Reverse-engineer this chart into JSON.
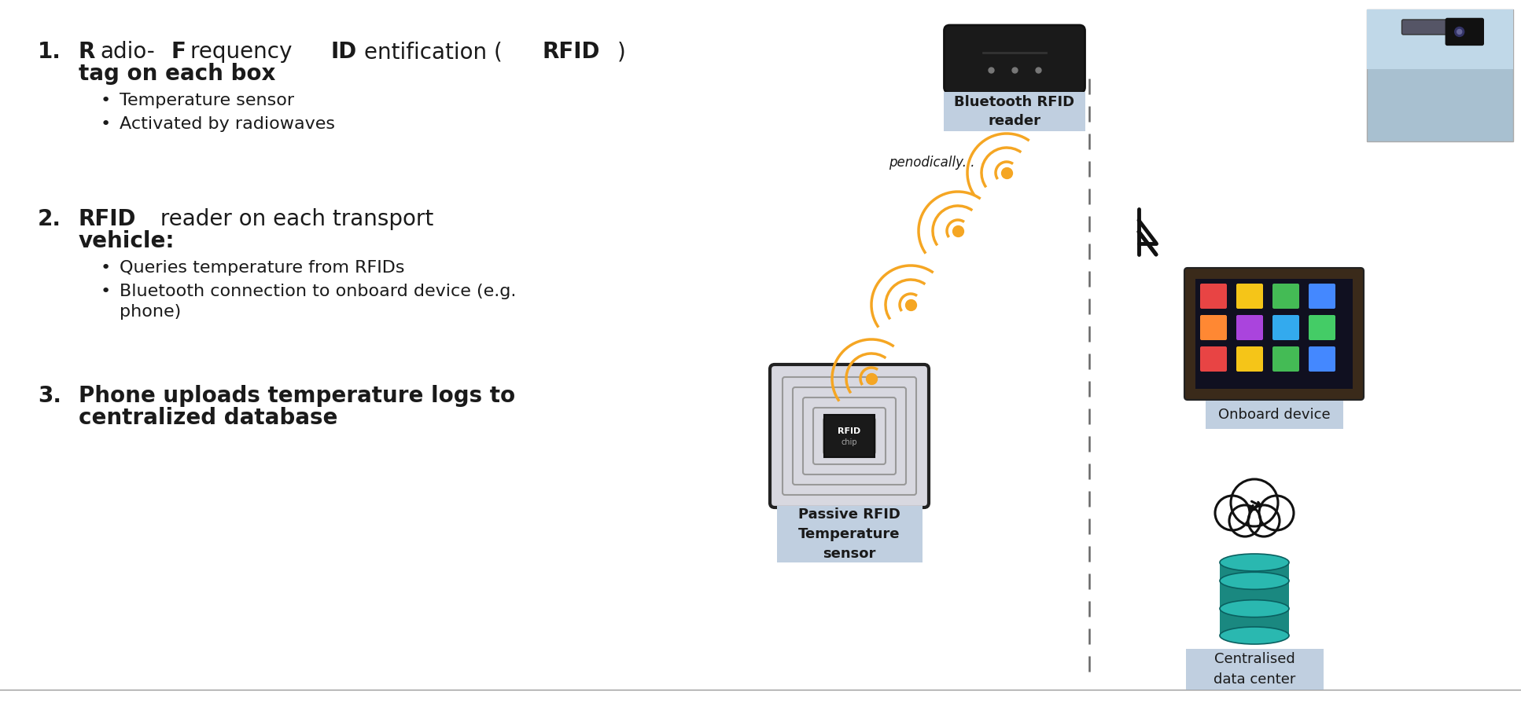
{
  "bg_color": "#ffffff",
  "text_color": "#1a1a1a",
  "box_label_bg": "#c0cfe0",
  "signal_color": "#f5a623",
  "dashed_line_color": "#666666",
  "item1_num": "1.",
  "item1_line1_plain": "adio-Frequency ",
  "item1_line1_bold1": "R",
  "item1_line1_bold2": "ID",
  "item1_line1_mid": "entification (",
  "item1_line1_bold3": "RFID",
  "item1_line1_end": ")",
  "item1_line2": "tag on each box",
  "item1_bullet1": "Temperature sensor",
  "item1_bullet2": "Activated by radiowaves",
  "item2_num": "2.",
  "item2_line1": "RFID reader on each transport",
  "item2_line2": "vehicle:",
  "item2_bullet1": "Queries temperature from RFIDs",
  "item2_bullet2a": "Bluetooth connection to onboard device (e.g.",
  "item2_bullet2b": "phone)",
  "item3_num": "3.",
  "item3_line1": "Phone uploads temperature logs to",
  "item3_line2": "centralized database",
  "periodically_text": "penodically...",
  "label_rfid": "Passive RFID\nTemperature\nsensor",
  "label_bt_reader": "Bluetooth RFID\nreader",
  "label_onboard": "Onboard device",
  "label_datacenter": "Centralised\ndata center",
  "db_color_light": "#2ab8b0",
  "db_color_dark": "#1a8880"
}
